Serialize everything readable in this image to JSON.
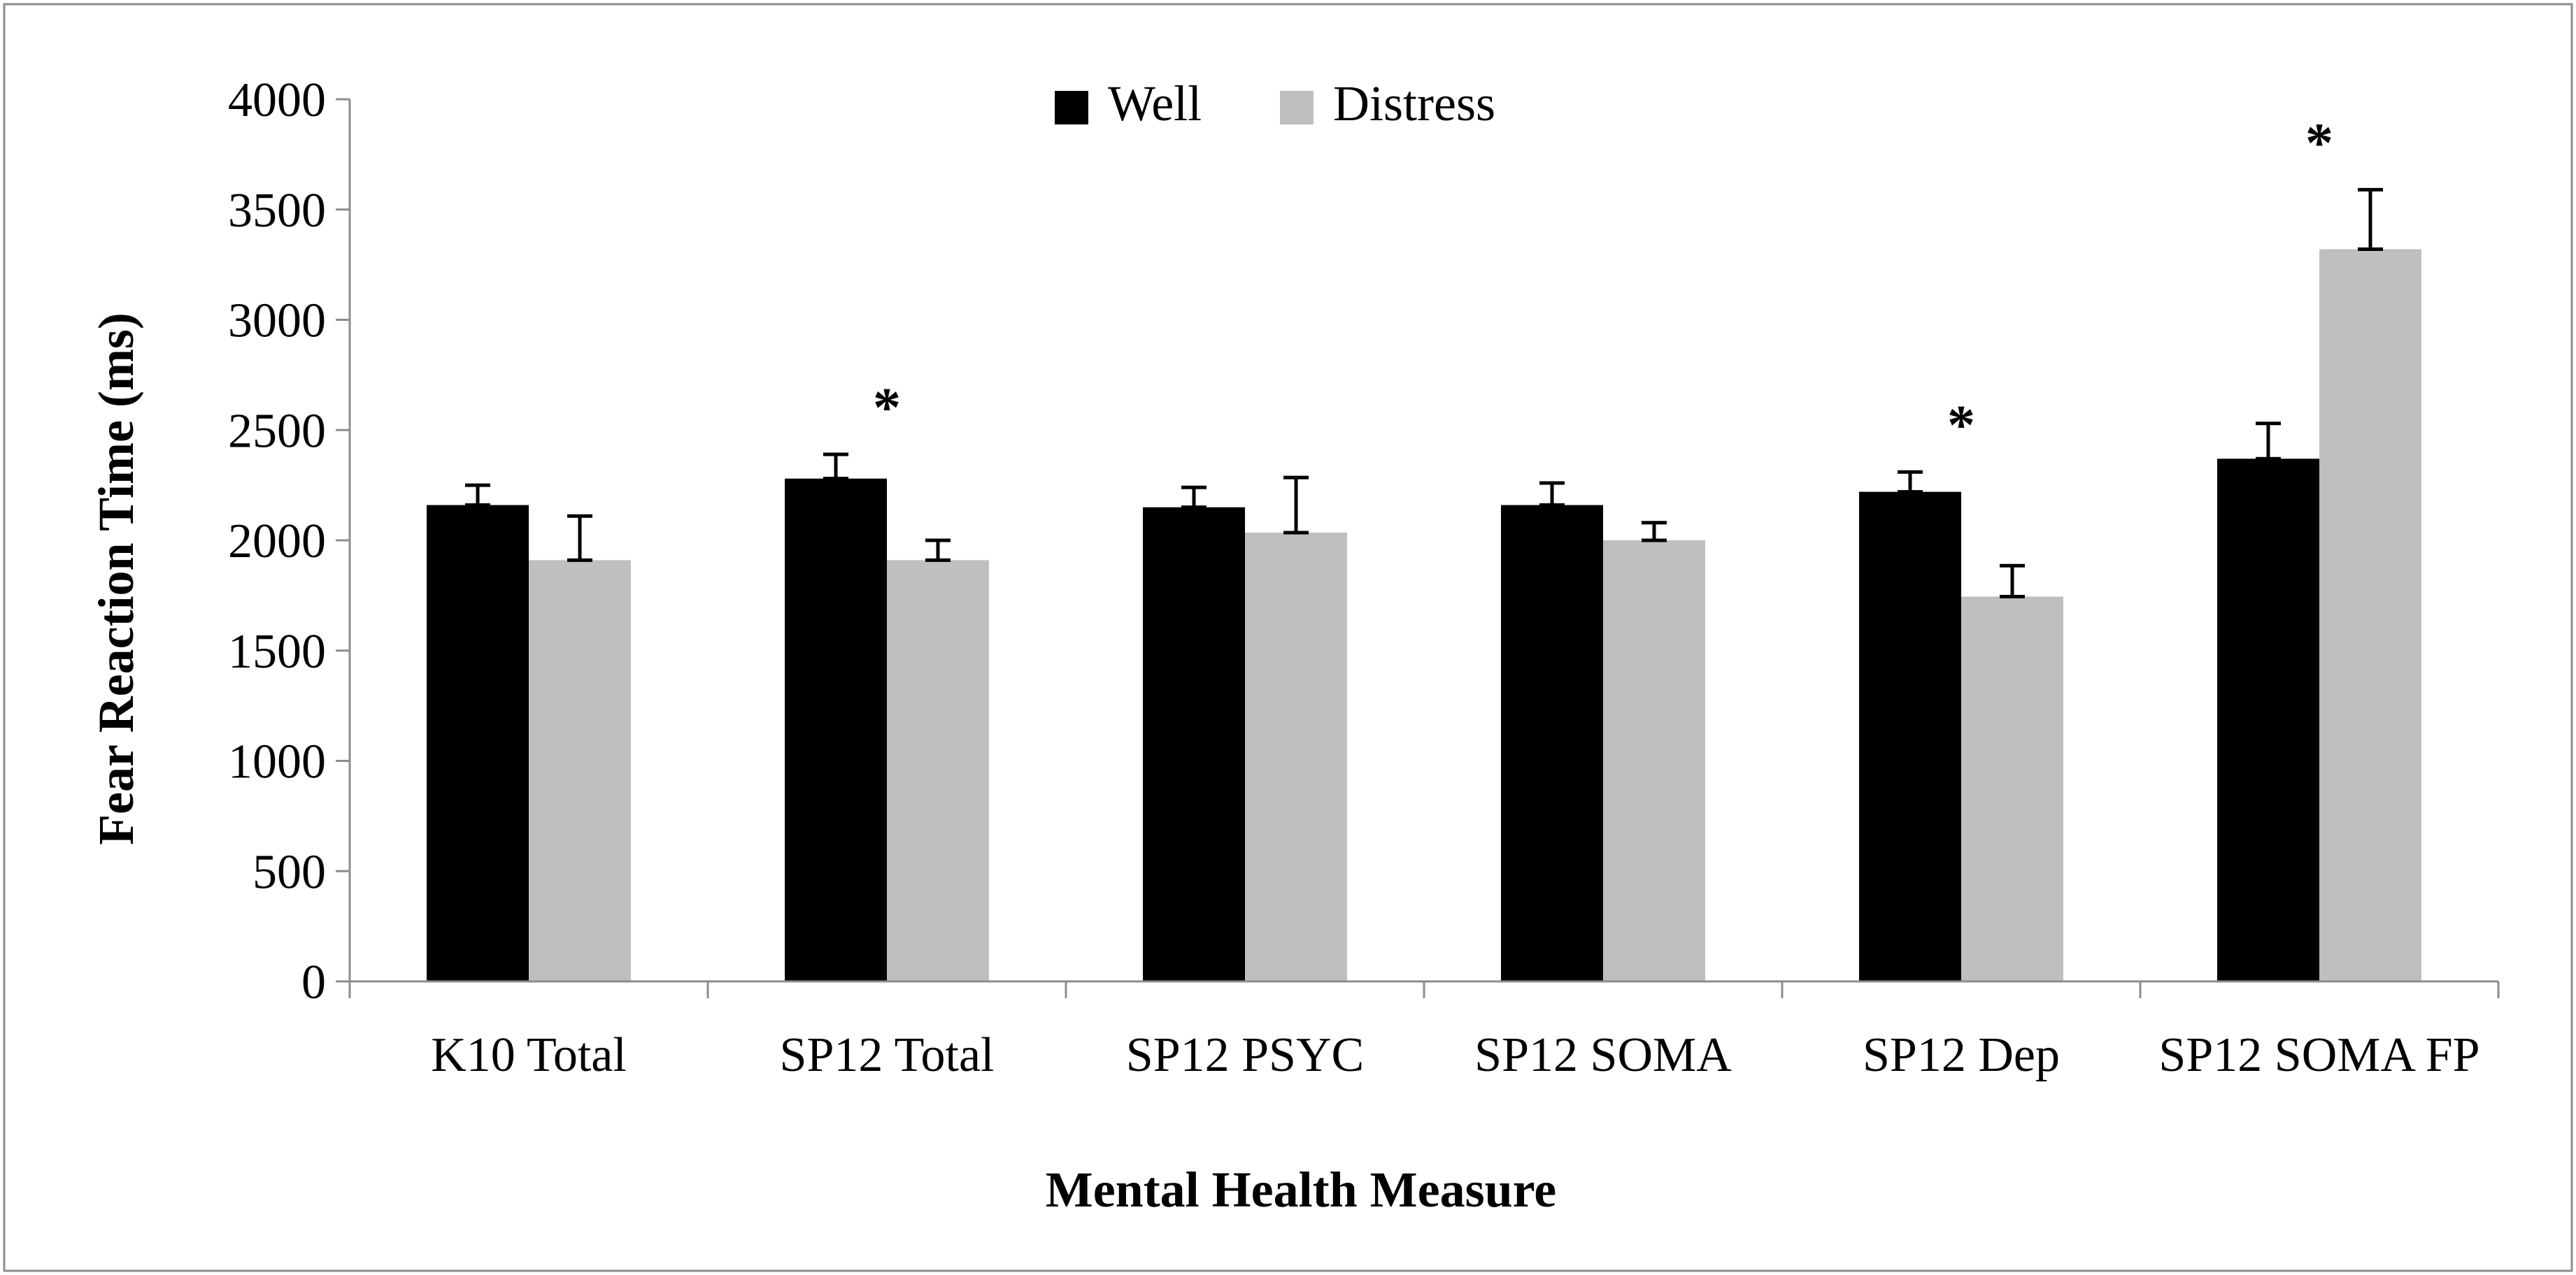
{
  "chart_data": {
    "type": "bar",
    "title": "",
    "xlabel": "Mental Health Measure",
    "ylabel": "Fear Reaction Time (ms)",
    "ylim": [
      0,
      4000
    ],
    "yticks": [
      0,
      500,
      1000,
      1500,
      2000,
      2500,
      3000,
      3500,
      4000
    ],
    "categories": [
      "K10 Total",
      "SP12 Total",
      "SP12 PSYC",
      "SP12 SOMA",
      "SP12 Dep",
      "SP12 SOMA FP"
    ],
    "series": [
      {
        "name": "Well",
        "color": "#000000",
        "values": [
          2160,
          2280,
          2150,
          2160,
          2220,
          2370
        ],
        "errors": [
          90,
          110,
          90,
          100,
          90,
          160
        ]
      },
      {
        "name": "Distress",
        "color": "#bfbfbf",
        "values": [
          1910,
          1910,
          2035,
          2000,
          1745,
          3320
        ],
        "errors": [
          200,
          90,
          250,
          80,
          140,
          270
        ]
      }
    ],
    "significance": [
      false,
      true,
      false,
      false,
      true,
      true
    ],
    "significance_marker": "*",
    "legend_position": "top-center"
  }
}
